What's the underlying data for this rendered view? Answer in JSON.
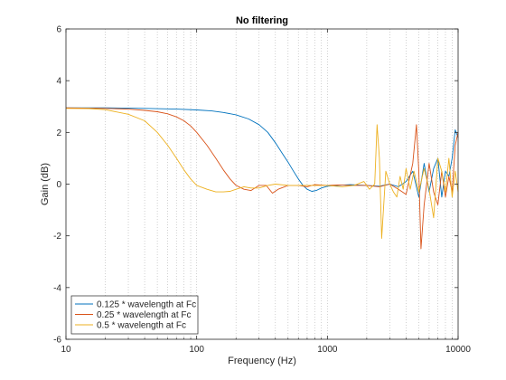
{
  "chart_data": {
    "type": "line",
    "title": "No filtering",
    "xlabel": "Frequency (Hz)",
    "ylabel": "Gain (dB)",
    "xscale": "log",
    "xlim": [
      10,
      10000
    ],
    "ylim": [
      -6,
      6
    ],
    "xticks": [
      10,
      100,
      1000,
      10000
    ],
    "xtick_labels": [
      "10",
      "100",
      "1000",
      "10000"
    ],
    "yticks": [
      -6,
      -4,
      -2,
      0,
      2,
      4,
      6
    ],
    "ytick_labels": [
      "-6",
      "-4",
      "-2",
      "0",
      "2",
      "4",
      "6"
    ],
    "grid": "x-minor-dotted",
    "legend_position": "bottom-left",
    "series": [
      {
        "name": "0.125 * wavelength at Fc",
        "color": "#0072BD",
        "points": [
          [
            10,
            2.95
          ],
          [
            20,
            2.95
          ],
          [
            40,
            2.93
          ],
          [
            70,
            2.9
          ],
          [
            100,
            2.87
          ],
          [
            130,
            2.83
          ],
          [
            160,
            2.77
          ],
          [
            200,
            2.68
          ],
          [
            250,
            2.52
          ],
          [
            300,
            2.3
          ],
          [
            350,
            2.0
          ],
          [
            400,
            1.6
          ],
          [
            450,
            1.2
          ],
          [
            500,
            0.85
          ],
          [
            550,
            0.5
          ],
          [
            600,
            0.2
          ],
          [
            650,
            -0.05
          ],
          [
            700,
            -0.2
          ],
          [
            760,
            -0.28
          ],
          [
            820,
            -0.25
          ],
          [
            900,
            -0.15
          ],
          [
            1000,
            -0.08
          ],
          [
            1200,
            -0.05
          ],
          [
            1500,
            -0.02
          ],
          [
            2000,
            -0.05
          ],
          [
            2500,
            -0.08
          ],
          [
            3000,
            0.0
          ],
          [
            3500,
            -0.1
          ],
          [
            4000,
            0.1
          ],
          [
            4500,
            0.5
          ],
          [
            5000,
            -0.5
          ],
          [
            5500,
            0.8
          ],
          [
            6000,
            -0.3
          ],
          [
            6500,
            0.6
          ],
          [
            7000,
            1.0
          ],
          [
            7500,
            -0.5
          ],
          [
            8000,
            0.5
          ],
          [
            8500,
            0.3
          ],
          [
            9000,
            1.0
          ],
          [
            9500,
            2.1
          ],
          [
            10000,
            1.8
          ]
        ]
      },
      {
        "name": "0.25 * wavelength at Fc",
        "color": "#D95319",
        "points": [
          [
            10,
            2.95
          ],
          [
            20,
            2.93
          ],
          [
            30,
            2.9
          ],
          [
            40,
            2.85
          ],
          [
            50,
            2.8
          ],
          [
            60,
            2.72
          ],
          [
            70,
            2.6
          ],
          [
            80,
            2.45
          ],
          [
            90,
            2.25
          ],
          [
            100,
            2.0
          ],
          [
            120,
            1.5
          ],
          [
            140,
            1.0
          ],
          [
            160,
            0.55
          ],
          [
            180,
            0.2
          ],
          [
            200,
            -0.05
          ],
          [
            230,
            -0.2
          ],
          [
            260,
            -0.25
          ],
          [
            300,
            -0.05
          ],
          [
            340,
            -0.05
          ],
          [
            380,
            -0.35
          ],
          [
            420,
            -0.2
          ],
          [
            500,
            -0.05
          ],
          [
            600,
            -0.05
          ],
          [
            700,
            -0.1
          ],
          [
            800,
            -0.02
          ],
          [
            1000,
            -0.05
          ],
          [
            1200,
            -0.03
          ],
          [
            1500,
            -0.05
          ],
          [
            2000,
            -0.05
          ],
          [
            2500,
            -0.1
          ],
          [
            3000,
            0.0
          ],
          [
            3500,
            -0.2
          ],
          [
            4000,
            -0.4
          ],
          [
            4500,
            0.8
          ],
          [
            4800,
            2.3
          ],
          [
            5000,
            0.5
          ],
          [
            5200,
            -2.5
          ],
          [
            5500,
            -0.8
          ],
          [
            6000,
            0.8
          ],
          [
            6500,
            -0.3
          ],
          [
            7000,
            -0.8
          ],
          [
            7500,
            0.5
          ],
          [
            8000,
            -0.5
          ],
          [
            8500,
            0.3
          ],
          [
            9000,
            -0.3
          ],
          [
            9500,
            1.5
          ],
          [
            10000,
            2.0
          ]
        ]
      },
      {
        "name": "0.5 * wavelength at Fc",
        "color": "#EDB120",
        "points": [
          [
            10,
            2.93
          ],
          [
            15,
            2.92
          ],
          [
            20,
            2.88
          ],
          [
            30,
            2.7
          ],
          [
            40,
            2.45
          ],
          [
            50,
            2.0
          ],
          [
            60,
            1.5
          ],
          [
            70,
            1.0
          ],
          [
            80,
            0.55
          ],
          [
            90,
            0.2
          ],
          [
            100,
            -0.05
          ],
          [
            120,
            -0.2
          ],
          [
            140,
            -0.3
          ],
          [
            160,
            -0.3
          ],
          [
            180,
            -0.28
          ],
          [
            200,
            -0.2
          ],
          [
            230,
            -0.1
          ],
          [
            260,
            -0.15
          ],
          [
            300,
            -0.15
          ],
          [
            350,
            -0.05
          ],
          [
            400,
            0.0
          ],
          [
            500,
            -0.05
          ],
          [
            600,
            -0.05
          ],
          [
            800,
            -0.05
          ],
          [
            1000,
            -0.05
          ],
          [
            1300,
            -0.1
          ],
          [
            1600,
            -0.05
          ],
          [
            1900,
            0.1
          ],
          [
            2100,
            -0.2
          ],
          [
            2300,
            0.0
          ],
          [
            2400,
            2.3
          ],
          [
            2500,
            1.0
          ],
          [
            2600,
            -2.1
          ],
          [
            2800,
            0.5
          ],
          [
            3000,
            0.0
          ],
          [
            3200,
            -0.3
          ],
          [
            3400,
            -0.5
          ],
          [
            3600,
            0.3
          ],
          [
            3800,
            -0.2
          ],
          [
            4000,
            0.6
          ],
          [
            4300,
            -0.2
          ],
          [
            4600,
            0.5
          ],
          [
            5000,
            -0.3
          ],
          [
            5500,
            0.6
          ],
          [
            6000,
            -0.2
          ],
          [
            6500,
            -1.3
          ],
          [
            7000,
            1.0
          ],
          [
            7500,
            0.5
          ],
          [
            8000,
            -0.3
          ],
          [
            8500,
            1.0
          ],
          [
            9000,
            -0.5
          ],
          [
            9500,
            0.5
          ],
          [
            10000,
            -0.3
          ]
        ]
      }
    ]
  }
}
